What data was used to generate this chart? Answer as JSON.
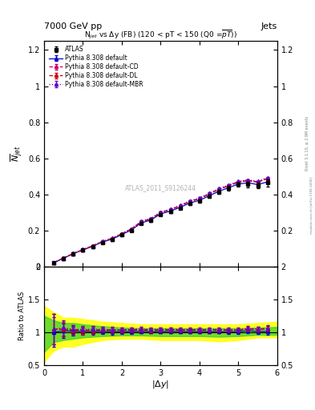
{
  "title": "7000 GeV pp",
  "title_right": "Jets",
  "subtitle": "N$_{jet}$ vs $\\Delta$y (FB) (120 < pT < 150 (Q0 =$\\overline{pT}$))",
  "xlabel": "|$\\Delta$y|",
  "ylabel": "$\\overline{N}_{jet}$",
  "ylabel_ratio": "Ratio to ATLAS",
  "watermark": "ATLAS_2011_S9126244",
  "rivet_label": "Rivet 3.1.10, ≥ 2.9M events",
  "arxiv_label": "mcplots.cern.ch [arXiv:1306.3436]",
  "x_data": [
    0.25,
    0.5,
    0.75,
    1.0,
    1.25,
    1.5,
    1.75,
    2.0,
    2.25,
    2.5,
    2.75,
    3.0,
    3.25,
    3.5,
    3.75,
    4.0,
    4.25,
    4.5,
    4.75,
    5.0,
    5.25,
    5.5,
    5.75
  ],
  "atlas_y": [
    0.022,
    0.046,
    0.071,
    0.092,
    0.112,
    0.135,
    0.152,
    0.177,
    0.202,
    0.24,
    0.257,
    0.29,
    0.305,
    0.326,
    0.35,
    0.365,
    0.39,
    0.415,
    0.435,
    0.455,
    0.455,
    0.45,
    0.465
  ],
  "atlas_yerr": [
    0.003,
    0.003,
    0.003,
    0.003,
    0.004,
    0.004,
    0.005,
    0.005,
    0.005,
    0.006,
    0.006,
    0.007,
    0.007,
    0.008,
    0.008,
    0.009,
    0.009,
    0.01,
    0.012,
    0.013,
    0.015,
    0.015,
    0.02
  ],
  "default_y": [
    0.022,
    0.047,
    0.072,
    0.093,
    0.113,
    0.137,
    0.153,
    0.178,
    0.204,
    0.243,
    0.259,
    0.293,
    0.308,
    0.329,
    0.353,
    0.368,
    0.393,
    0.418,
    0.438,
    0.458,
    0.465,
    0.455,
    0.47
  ],
  "cd_y": [
    0.023,
    0.048,
    0.074,
    0.095,
    0.116,
    0.14,
    0.157,
    0.183,
    0.21,
    0.25,
    0.266,
    0.301,
    0.317,
    0.338,
    0.363,
    0.378,
    0.404,
    0.43,
    0.45,
    0.47,
    0.478,
    0.47,
    0.49
  ],
  "dl_y": [
    0.023,
    0.048,
    0.073,
    0.094,
    0.115,
    0.139,
    0.156,
    0.182,
    0.208,
    0.248,
    0.264,
    0.299,
    0.315,
    0.336,
    0.361,
    0.376,
    0.402,
    0.428,
    0.448,
    0.468,
    0.476,
    0.468,
    0.488
  ],
  "mbr_y": [
    0.023,
    0.049,
    0.074,
    0.096,
    0.117,
    0.141,
    0.158,
    0.184,
    0.211,
    0.252,
    0.268,
    0.303,
    0.319,
    0.34,
    0.365,
    0.381,
    0.407,
    0.433,
    0.453,
    0.473,
    0.481,
    0.473,
    0.493
  ],
  "mc_yerr": 0.004,
  "ylim_main": [
    0.0,
    1.25
  ],
  "ylim_ratio": [
    0.5,
    2.0
  ],
  "xlim": [
    0.0,
    6.0
  ],
  "color_atlas": "#000000",
  "color_default": "#0000cc",
  "color_cd": "#cc0066",
  "color_dl": "#cc0000",
  "color_mbr": "#6600cc",
  "bg_color": "#ffffff",
  "yellow_band_x": [
    0.0,
    0.25,
    0.5,
    0.75,
    1.0,
    1.5,
    2.0,
    2.5,
    3.0,
    3.5,
    4.0,
    4.5,
    5.0,
    5.5,
    6.0
  ],
  "yellow_lower": [
    0.55,
    0.72,
    0.78,
    0.78,
    0.82,
    0.88,
    0.9,
    0.9,
    0.88,
    0.88,
    0.88,
    0.86,
    0.88,
    0.92,
    0.92
  ],
  "yellow_upper": [
    1.4,
    1.3,
    1.22,
    1.22,
    1.2,
    1.16,
    1.14,
    1.12,
    1.12,
    1.12,
    1.12,
    1.12,
    1.12,
    1.14,
    1.16
  ],
  "green_lower": [
    0.7,
    0.85,
    0.88,
    0.9,
    0.92,
    0.94,
    0.95,
    0.95,
    0.94,
    0.94,
    0.94,
    0.93,
    0.94,
    0.96,
    0.96
  ],
  "green_upper": [
    1.25,
    1.18,
    1.14,
    1.14,
    1.12,
    1.09,
    1.07,
    1.06,
    1.06,
    1.06,
    1.06,
    1.06,
    1.06,
    1.07,
    1.08
  ]
}
